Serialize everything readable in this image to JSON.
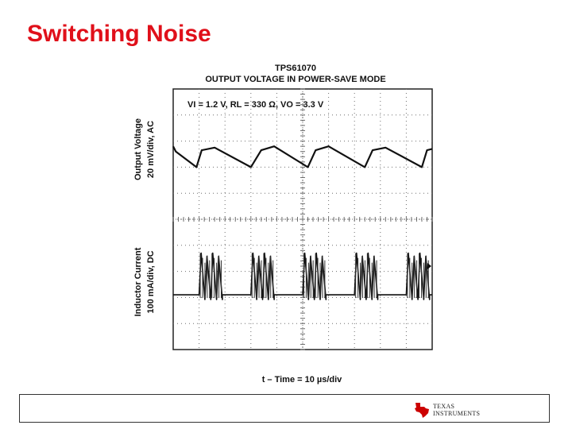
{
  "slide": {
    "title": "Switching Noise"
  },
  "chart_data": {
    "type": "line",
    "title": "TPS61070",
    "subtitle": "OUTPUT VOLTAGE IN POWER-SAVE MODE",
    "annotation": "VI = 1.2 V, RL = 330 Ω, VO = 3.3 V",
    "xlabel": "t – Time = 10 µs/div",
    "ylabel_top_line1": "Output Voltage",
    "ylabel_top_line2": "20 mV/div, AC",
    "ylabel_bottom_line1": "Inductor Current",
    "ylabel_bottom_line2": "100 mA/div, DC",
    "x_divisions": 10,
    "y_divisions": 10,
    "grid": true,
    "colors": {
      "trace": "#111111",
      "grid": "#6e6e6e",
      "frame": "#222222"
    },
    "series": [
      {
        "name": "Output Voltage",
        "x": [
          0,
          0.1,
          0.9,
          1.1,
          1.6,
          3.0,
          3.4,
          3.9,
          5.2,
          5.5,
          6.0,
          7.4,
          7.7,
          8.2,
          9.6,
          9.8,
          10
        ],
        "y": [
          7.8,
          7.6,
          7.0,
          7.65,
          7.75,
          7.0,
          7.65,
          7.8,
          7.0,
          7.65,
          7.8,
          7.0,
          7.65,
          7.75,
          7.0,
          7.65,
          7.7
        ]
      },
      {
        "name": "Inductor Current",
        "baseline_div": 2.1,
        "peak_div": 3.7,
        "burst_start_div": [
          1.0,
          3.0,
          5.0,
          7.0,
          9.0
        ],
        "burst_width_div": 0.9,
        "pulses_per_burst": 4
      }
    ]
  },
  "footer": {
    "logo_line1": "Texas",
    "logo_line2": "Instruments"
  }
}
